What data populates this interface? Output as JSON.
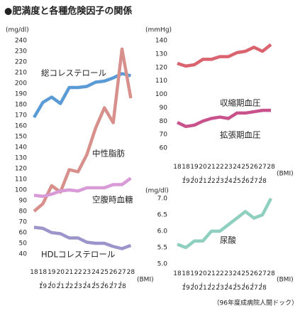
{
  "title": "●肥満度と各種危険因子の関係",
  "note": "（96年度成病院人間ドック）",
  "chart_data": [
    {
      "type": "line",
      "y_label": "(mg/dl)",
      "x_label": "(BMI)",
      "categories": [
        "18",
        "18~19",
        "19~20",
        "20~21",
        "21~22",
        "22~23",
        "23~24",
        "24~25",
        "25~26",
        "26~27",
        "27~28",
        "28"
      ],
      "ylim": [
        40,
        240
      ],
      "yticks": [
        40,
        50,
        60,
        70,
        80,
        90,
        100,
        110,
        120,
        130,
        140,
        150,
        160,
        170,
        180,
        190,
        200,
        210,
        220,
        230,
        240
      ],
      "series": [
        {
          "name": "総コレステロール",
          "color": "#5b9bd5",
          "values": [
            168,
            182,
            187,
            181,
            196,
            196,
            197,
            201,
            202,
            205,
            209,
            207
          ]
        },
        {
          "name": "中性脂肪",
          "color": "#d8908c",
          "values": [
            80,
            87,
            104,
            98,
            119,
            117,
            133,
            158,
            177,
            163,
            232,
            186
          ]
        },
        {
          "name": "空腹時血糖",
          "color": "#d99ad8",
          "values": [
            95,
            94,
            96,
            99,
            100,
            99,
            102,
            102,
            102,
            105,
            105,
            111
          ]
        },
        {
          "name": "HDLコレステロール",
          "color": "#9c95cc",
          "values": [
            65,
            64,
            60,
            59,
            55,
            55,
            51,
            50,
            50,
            47,
            45,
            48
          ]
        }
      ]
    },
    {
      "type": "line",
      "y_label": "(mmHg)",
      "x_label": "(BMI)",
      "categories": [
        "18",
        "18~19",
        "19~20",
        "20~21",
        "21~22",
        "22~23",
        "23~24",
        "24~25",
        "25~26",
        "26~27",
        "27~28",
        "28"
      ],
      "ylim": [
        60,
        140
      ],
      "yticks": [
        60,
        70,
        80,
        90,
        100,
        110,
        120,
        130,
        140
      ],
      "series": [
        {
          "name": "収縮期血圧",
          "color": "#d9636f",
          "values": [
            123,
            121,
            122,
            126,
            126,
            128,
            128,
            131,
            132,
            135,
            132,
            137
          ]
        },
        {
          "name": "拡張期血圧",
          "color": "#c8528c",
          "values": [
            79,
            76,
            77,
            80,
            82,
            83,
            82,
            86,
            86,
            87,
            88,
            88
          ]
        }
      ]
    },
    {
      "type": "line",
      "y_label": "(mg/dl)",
      "x_label": "(BMI)",
      "categories": [
        "18",
        "18~19",
        "19~20",
        "20~21",
        "21~22",
        "22~23",
        "23~24",
        "24~25",
        "25~26",
        "26~27",
        "27~28",
        "28"
      ],
      "ylim": [
        5,
        7
      ],
      "yticks": [
        {
          "value": 5,
          "label": "5.0"
        },
        {
          "value": 5.5,
          "label": "5.5"
        },
        {
          "value": 6,
          "label": "6.0"
        },
        {
          "value": 6.5,
          "label": "6.5"
        },
        {
          "value": 7,
          "label": "7.0"
        }
      ],
      "series": [
        {
          "name": "尿酸",
          "color": "#8ecfc0",
          "values": [
            5.6,
            5.5,
            5.7,
            5.7,
            6.0,
            6.0,
            6.2,
            6.4,
            6.6,
            6.4,
            6.5,
            7.0
          ]
        }
      ]
    }
  ]
}
